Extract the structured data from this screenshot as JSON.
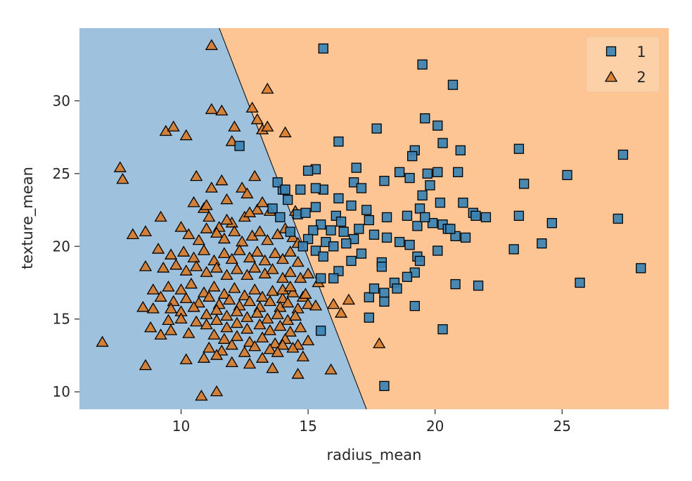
{
  "chart_data": {
    "type": "scatter",
    "title": "",
    "xlabel": "radius_mean",
    "ylabel": "texture_mean",
    "xlim": [
      6.0,
      29.2
    ],
    "ylim": [
      8.8,
      35.0
    ],
    "xticks": [
      "10",
      "15",
      "20",
      "25"
    ],
    "xtick_values": [
      10,
      15,
      20,
      25
    ],
    "yticks": [
      "10",
      "15",
      "20",
      "25",
      "30"
    ],
    "ytick_values": [
      10,
      15,
      20,
      25,
      30
    ],
    "grid": false,
    "legend": {
      "placement": "top-right"
    },
    "decision_boundary": {
      "points": [
        [
          11.5,
          35.0
        ],
        [
          14.6,
          21.0
        ],
        [
          17.3,
          8.8
        ]
      ],
      "left_region_color": "#9ec2dd",
      "right_region_color": "#fdc594",
      "boundary_color": "#000000"
    },
    "series": [
      {
        "name": "1",
        "marker": "square",
        "color": "#3a82b3",
        "points": [
          [
            15.6,
            33.6
          ],
          [
            19.5,
            32.5
          ],
          [
            20.7,
            31.1
          ],
          [
            17.7,
            28.1
          ],
          [
            20.1,
            28.3
          ],
          [
            19.6,
            28.8
          ],
          [
            16.2,
            27.2
          ],
          [
            20.3,
            27.1
          ],
          [
            21.0,
            26.6
          ],
          [
            23.3,
            26.7
          ],
          [
            19.2,
            26.6
          ],
          [
            19.1,
            26.2
          ],
          [
            27.4,
            26.3
          ],
          [
            16.9,
            25.4
          ],
          [
            18.6,
            25.1
          ],
          [
            20.1,
            25.1
          ],
          [
            20.9,
            25.1
          ],
          [
            25.2,
            24.9
          ],
          [
            19.7,
            25.0
          ],
          [
            19.0,
            24.7
          ],
          [
            19.8,
            24.2
          ],
          [
            18.0,
            24.5
          ],
          [
            16.8,
            24.4
          ],
          [
            17.1,
            24.0
          ],
          [
            17.3,
            22.5
          ],
          [
            16.2,
            23.3
          ],
          [
            16.7,
            22.8
          ],
          [
            15.6,
            23.9
          ],
          [
            15.3,
            24.0
          ],
          [
            15.3,
            25.3
          ],
          [
            15.0,
            25.2
          ],
          [
            14.2,
            23.2
          ],
          [
            14.7,
            23.9
          ],
          [
            19.5,
            23.5
          ],
          [
            20.2,
            23.0
          ],
          [
            21.1,
            23.0
          ],
          [
            21.5,
            22.3
          ],
          [
            22.0,
            22.0
          ],
          [
            23.3,
            22.1
          ],
          [
            24.6,
            21.6
          ],
          [
            23.5,
            24.3
          ],
          [
            18.9,
            22.1
          ],
          [
            19.3,
            21.4
          ],
          [
            19.9,
            21.6
          ],
          [
            20.3,
            21.5
          ],
          [
            20.5,
            21.2
          ],
          [
            19.4,
            22.6
          ],
          [
            18.1,
            22.0
          ],
          [
            17.4,
            21.8
          ],
          [
            17.0,
            21.2
          ],
          [
            16.4,
            21.0
          ],
          [
            16.8,
            20.5
          ],
          [
            17.6,
            20.8
          ],
          [
            18.1,
            20.6
          ],
          [
            18.6,
            20.3
          ],
          [
            19.0,
            20.1
          ],
          [
            19.3,
            19.3
          ],
          [
            19.4,
            19.0
          ],
          [
            20.1,
            19.7
          ],
          [
            20.8,
            20.7
          ],
          [
            21.2,
            20.6
          ],
          [
            15.7,
            20.3
          ],
          [
            16.0,
            20.0
          ],
          [
            16.5,
            20.2
          ],
          [
            17.1,
            19.5
          ],
          [
            15.3,
            19.7
          ],
          [
            15.6,
            19.3
          ],
          [
            16.7,
            19.0
          ],
          [
            16.2,
            18.3
          ],
          [
            16.0,
            17.8
          ],
          [
            15.5,
            17.8
          ],
          [
            17.9,
            18.9
          ],
          [
            17.9,
            18.6
          ],
          [
            19.2,
            18.2
          ],
          [
            18.9,
            17.9
          ],
          [
            18.4,
            17.5
          ],
          [
            18.5,
            17.1
          ],
          [
            19.2,
            15.9
          ],
          [
            20.8,
            17.4
          ],
          [
            21.7,
            17.3
          ],
          [
            23.1,
            19.8
          ],
          [
            24.2,
            20.2
          ],
          [
            25.7,
            17.5
          ],
          [
            27.2,
            21.9
          ],
          [
            28.1,
            18.5
          ],
          [
            17.4,
            16.5
          ],
          [
            17.6,
            17.1
          ],
          [
            18.0,
            16.8
          ],
          [
            18.0,
            16.2
          ],
          [
            17.4,
            15.1
          ],
          [
            20.3,
            14.3
          ],
          [
            15.5,
            14.2
          ],
          [
            18.0,
            10.4
          ],
          [
            12.3,
            26.9
          ],
          [
            14.0,
            23.9
          ],
          [
            13.6,
            22.6
          ],
          [
            13.9,
            22.0
          ],
          [
            14.3,
            21.0
          ],
          [
            13.8,
            24.4
          ],
          [
            14.1,
            23.9
          ],
          [
            14.6,
            22.2
          ],
          [
            14.9,
            22.3
          ],
          [
            15.3,
            22.7
          ],
          [
            15.5,
            21.5
          ],
          [
            15.9,
            21.1
          ],
          [
            16.1,
            22.1
          ],
          [
            16.3,
            21.7
          ],
          [
            19.6,
            22.0
          ],
          [
            20.6,
            21.2
          ],
          [
            21.6,
            22.1
          ],
          [
            15.2,
            21.1
          ],
          [
            15.0,
            20.5
          ],
          [
            14.8,
            20.0
          ]
        ]
      },
      {
        "name": "2",
        "marker": "triangle",
        "color": "#d77c2c",
        "points": [
          [
            11.2,
            33.8
          ],
          [
            13.4,
            30.8
          ],
          [
            11.2,
            29.4
          ],
          [
            11.6,
            29.3
          ],
          [
            12.8,
            29.5
          ],
          [
            13.0,
            28.7
          ],
          [
            12.1,
            28.2
          ],
          [
            9.4,
            27.9
          ],
          [
            9.7,
            28.2
          ],
          [
            10.2,
            27.6
          ],
          [
            13.2,
            28.0
          ],
          [
            13.4,
            28.2
          ],
          [
            14.1,
            27.8
          ],
          [
            12.0,
            27.2
          ],
          [
            7.6,
            25.4
          ],
          [
            7.7,
            24.6
          ],
          [
            10.6,
            24.8
          ],
          [
            11.2,
            24.0
          ],
          [
            11.6,
            24.5
          ],
          [
            12.4,
            24.0
          ],
          [
            12.6,
            23.6
          ],
          [
            12.9,
            24.8
          ],
          [
            11.8,
            23.2
          ],
          [
            10.5,
            23.0
          ],
          [
            10.9,
            22.6
          ],
          [
            11.1,
            22.0
          ],
          [
            9.2,
            22.0
          ],
          [
            11.5,
            21.3
          ],
          [
            12.0,
            21.6
          ],
          [
            12.5,
            22.0
          ],
          [
            13.0,
            22.5
          ],
          [
            13.5,
            22.4
          ],
          [
            10.0,
            21.3
          ],
          [
            8.1,
            20.8
          ],
          [
            8.6,
            21.0
          ],
          [
            10.3,
            20.8
          ],
          [
            10.7,
            20.4
          ],
          [
            11.0,
            21.2
          ],
          [
            11.4,
            20.9
          ],
          [
            11.7,
            20.5
          ],
          [
            12.1,
            21.0
          ],
          [
            12.4,
            20.3
          ],
          [
            12.8,
            20.7
          ],
          [
            13.1,
            21.0
          ],
          [
            13.4,
            20.4
          ],
          [
            13.8,
            20.8
          ],
          [
            14.1,
            21.2
          ],
          [
            14.4,
            20.6
          ],
          [
            14.6,
            20.2
          ],
          [
            9.1,
            19.8
          ],
          [
            9.6,
            19.4
          ],
          [
            10.1,
            19.6
          ],
          [
            10.5,
            19.2
          ],
          [
            10.9,
            19.7
          ],
          [
            11.3,
            19.0
          ],
          [
            11.7,
            19.5
          ],
          [
            12.0,
            19.1
          ],
          [
            12.3,
            19.7
          ],
          [
            12.7,
            19.2
          ],
          [
            13.0,
            19.6
          ],
          [
            13.3,
            19.0
          ],
          [
            13.7,
            19.5
          ],
          [
            14.0,
            19.1
          ],
          [
            14.3,
            19.6
          ],
          [
            14.6,
            18.9
          ],
          [
            8.6,
            18.6
          ],
          [
            9.3,
            18.5
          ],
          [
            9.8,
            18.7
          ],
          [
            10.2,
            18.3
          ],
          [
            10.6,
            18.6
          ],
          [
            11.0,
            18.2
          ],
          [
            11.4,
            18.5
          ],
          [
            11.8,
            18.0
          ],
          [
            12.2,
            18.4
          ],
          [
            12.6,
            18.0
          ],
          [
            12.9,
            18.5
          ],
          [
            13.3,
            18.1
          ],
          [
            13.6,
            18.4
          ],
          [
            14.0,
            17.8
          ],
          [
            14.3,
            18.2
          ],
          [
            14.7,
            17.8
          ],
          [
            15.0,
            18.1
          ],
          [
            8.9,
            17.0
          ],
          [
            9.5,
            17.2
          ],
          [
            10.0,
            17.0
          ],
          [
            10.4,
            17.4
          ],
          [
            10.9,
            16.8
          ],
          [
            11.3,
            17.2
          ],
          [
            11.7,
            16.7
          ],
          [
            12.1,
            17.1
          ],
          [
            12.5,
            16.6
          ],
          [
            12.9,
            17.0
          ],
          [
            13.2,
            16.5
          ],
          [
            13.6,
            16.9
          ],
          [
            14.0,
            16.4
          ],
          [
            14.4,
            16.8
          ],
          [
            14.8,
            16.5
          ],
          [
            9.2,
            16.5
          ],
          [
            9.7,
            16.2
          ],
          [
            10.2,
            16.4
          ],
          [
            10.7,
            16.1
          ],
          [
            11.1,
            16.5
          ],
          [
            11.5,
            16.0
          ],
          [
            11.9,
            16.3
          ],
          [
            12.3,
            15.9
          ],
          [
            12.7,
            16.2
          ],
          [
            13.1,
            15.8
          ],
          [
            13.5,
            16.2
          ],
          [
            13.9,
            15.8
          ],
          [
            14.2,
            16.1
          ],
          [
            14.6,
            15.7
          ],
          [
            15.0,
            16.0
          ],
          [
            8.5,
            15.8
          ],
          [
            8.9,
            15.7
          ],
          [
            9.6,
            15.7
          ],
          [
            10.0,
            15.5
          ],
          [
            10.5,
            15.8
          ],
          [
            11.0,
            15.3
          ],
          [
            11.4,
            15.6
          ],
          [
            11.8,
            15.2
          ],
          [
            12.2,
            15.5
          ],
          [
            12.6,
            15.1
          ],
          [
            13.0,
            15.4
          ],
          [
            13.4,
            15.0
          ],
          [
            13.8,
            15.3
          ],
          [
            14.2,
            14.9
          ],
          [
            14.5,
            15.2
          ],
          [
            9.5,
            14.9
          ],
          [
            10.0,
            15.0
          ],
          [
            10.6,
            14.8
          ],
          [
            11.0,
            14.6
          ],
          [
            11.4,
            14.9
          ],
          [
            11.8,
            14.4
          ],
          [
            12.2,
            14.7
          ],
          [
            12.6,
            14.3
          ],
          [
            13.1,
            14.6
          ],
          [
            13.5,
            14.2
          ],
          [
            13.9,
            14.5
          ],
          [
            14.3,
            14.1
          ],
          [
            14.7,
            14.4
          ],
          [
            8.8,
            14.4
          ],
          [
            9.2,
            13.9
          ],
          [
            9.6,
            14.2
          ],
          [
            10.3,
            14.0
          ],
          [
            11.3,
            13.9
          ],
          [
            11.7,
            13.6
          ],
          [
            12.2,
            13.8
          ],
          [
            12.7,
            13.4
          ],
          [
            13.2,
            13.7
          ],
          [
            13.7,
            13.3
          ],
          [
            14.1,
            13.6
          ],
          [
            14.6,
            13.2
          ],
          [
            15.0,
            13.5
          ],
          [
            11.1,
            13.0
          ],
          [
            11.6,
            12.8
          ],
          [
            12.0,
            13.2
          ],
          [
            12.5,
            12.7
          ],
          [
            12.9,
            13.1
          ],
          [
            13.5,
            12.9
          ],
          [
            14.0,
            13.2
          ],
          [
            14.4,
            13.0
          ],
          [
            6.9,
            13.4
          ],
          [
            8.6,
            11.8
          ],
          [
            10.2,
            12.2
          ],
          [
            10.9,
            12.3
          ],
          [
            11.4,
            12.5
          ],
          [
            12.0,
            12.0
          ],
          [
            12.7,
            11.9
          ],
          [
            13.2,
            12.3
          ],
          [
            13.8,
            12.7
          ],
          [
            14.8,
            12.4
          ],
          [
            14.6,
            11.2
          ],
          [
            15.9,
            11.5
          ],
          [
            13.6,
            11.6
          ],
          [
            10.8,
            9.7
          ],
          [
            11.4,
            10.0
          ],
          [
            16.0,
            16.0
          ],
          [
            16.3,
            15.4
          ],
          [
            16.6,
            16.3
          ],
          [
            15.3,
            15.9
          ],
          [
            14.9,
            16.7
          ],
          [
            15.4,
            17.5
          ],
          [
            17.8,
            13.3
          ],
          [
            14.0,
            17.0
          ],
          [
            14.3,
            17.2
          ],
          [
            11.0,
            22.8
          ],
          [
            11.8,
            21.8
          ],
          [
            12.7,
            22.3
          ],
          [
            13.2,
            23.0
          ],
          [
            14.5,
            22.4
          ]
        ]
      }
    ]
  }
}
